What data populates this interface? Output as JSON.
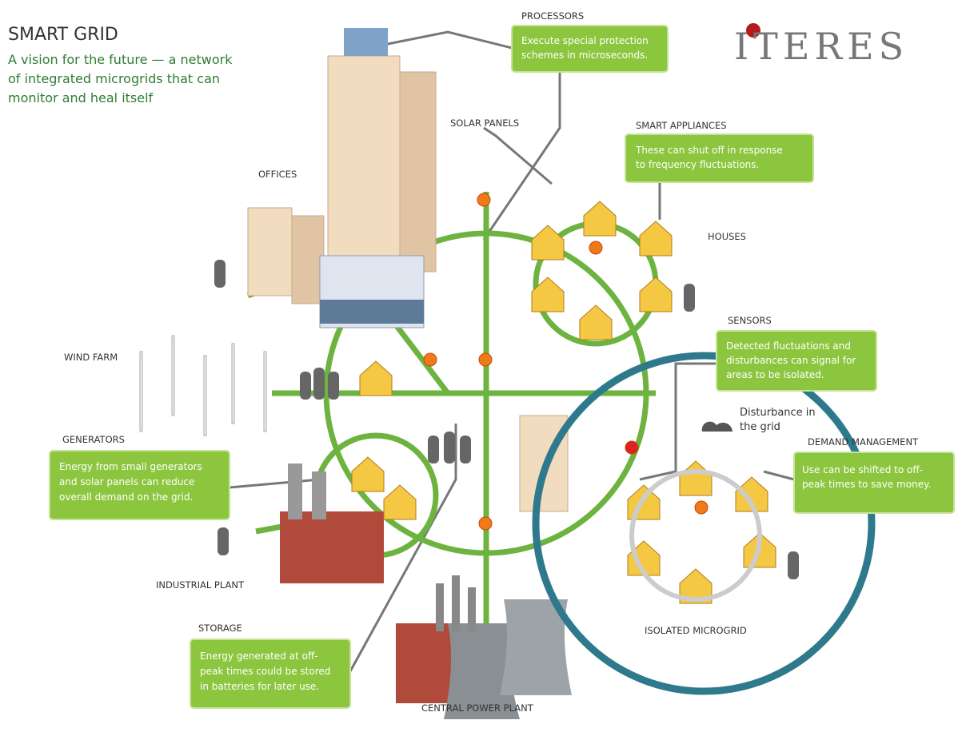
{
  "header": {
    "title": "SMART GRID",
    "subtitle_lines": [
      "A vision for the future — a network",
      "of integrated microgrids that can",
      "monitor and heal itself"
    ]
  },
  "logo": "ITERES",
  "labels": {
    "solar_panels": "SOLAR PANELS",
    "offices": "OFFICES",
    "houses": "HOUSES",
    "wind_farm": "WIND FARM",
    "industrial_plant": "INDUSTRIAL PLANT",
    "central_power_plant": "CENTRAL POWER PLANT",
    "isolated_microgrid": "ISOLATED MICROGRID",
    "disturbance_lines": [
      "Disturbance in",
      "the grid"
    ]
  },
  "callouts": {
    "processors": {
      "title": "PROCESSORS",
      "lines": [
        "Execute special protection",
        "schemes in microseconds."
      ]
    },
    "smart_appliances": {
      "title": "SMART APPLIANCES",
      "lines": [
        "These can shut off in response",
        "to frequency fluctuations."
      ]
    },
    "sensors": {
      "title": "SENSORS",
      "lines": [
        "Detected fluctuations and",
        "disturbances can signal for",
        "areas to be isolated."
      ]
    },
    "demand_management": {
      "title": "DEMAND MANAGEMENT",
      "lines": [
        "Use can be shifted to off-",
        "peak times to save money."
      ]
    },
    "generators": {
      "title": "GENERATORS",
      "lines": [
        "Energy from small generators",
        "and solar panels can reduce",
        "overall demand on the grid."
      ]
    },
    "storage": {
      "title": "STORAGE",
      "lines": [
        "Energy generated at off-",
        "peak times could be stored",
        "in batteries for later use."
      ]
    }
  }
}
